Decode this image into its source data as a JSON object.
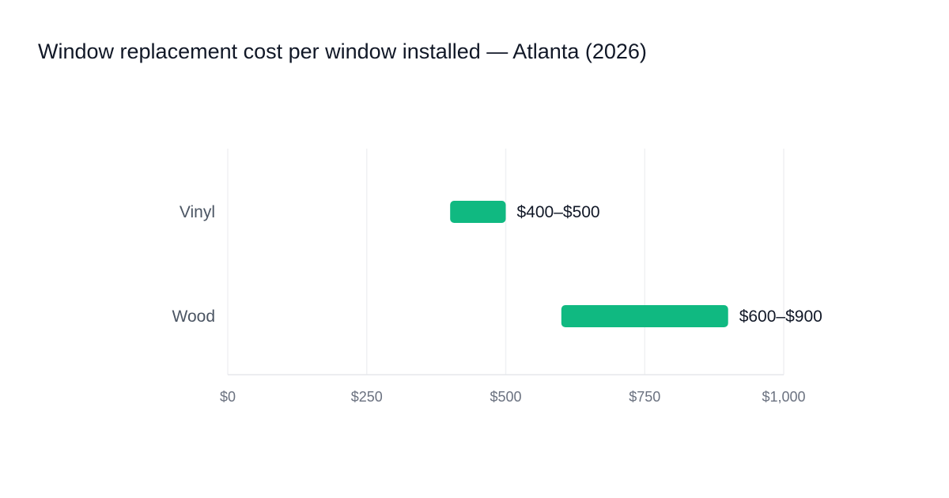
{
  "chart_data": {
    "type": "bar",
    "orientation": "horizontal",
    "title": "Window replacement cost per window installed — Atlanta (2026)",
    "xlabel": "",
    "ylabel": "",
    "categories": [
      "Vinyl",
      "Wood"
    ],
    "series": [
      {
        "ranges": [
          [
            400,
            500
          ],
          [
            600,
            900
          ]
        ],
        "data_labels": [
          "$400–$500",
          "$600–$900"
        ]
      }
    ],
    "xlim": [
      0,
      1000
    ],
    "x_ticks": [
      0,
      250,
      500,
      750,
      1000
    ],
    "x_tick_labels": [
      "$0",
      "$250",
      "$500",
      "$750",
      "$1,000"
    ],
    "grid": true,
    "legend": "none",
    "bar_color": "#10b981"
  }
}
